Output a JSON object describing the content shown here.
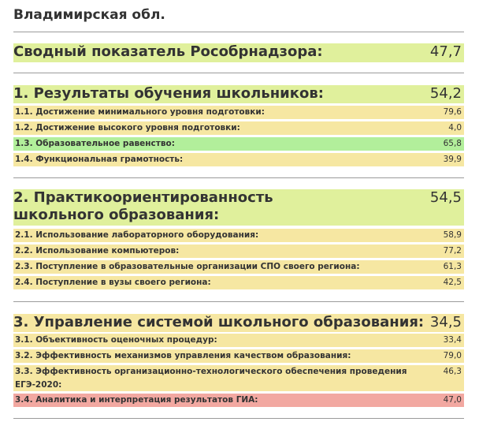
{
  "region": "Владимирская обл.",
  "colors": {
    "lime": "#e0f09c",
    "yellow": "#f6e7a2",
    "green": "#b2ef9b",
    "red": "#f2a8a1"
  },
  "summary": {
    "label": "Сводный показатель Рособрнадзора:",
    "value": "47,7",
    "color": "lime"
  },
  "sections": [
    {
      "label": "1. Результаты обучения школьников:",
      "value": "54,2",
      "color": "lime",
      "items": [
        {
          "label": "1.1. Достижение минимального уровня подготовки:",
          "value": "79,6",
          "color": "yellow"
        },
        {
          "label": "1.2. Достижение высокого уровня подготовки:",
          "value": "4,0",
          "color": "yellow"
        },
        {
          "label": "1.3. Образовательное равенство:",
          "value": "65,8",
          "color": "green"
        },
        {
          "label": "1.4. Функциональная грамотность:",
          "value": "39,9",
          "color": "yellow"
        }
      ]
    },
    {
      "label": "2. Практикоориентированность школьного образования:",
      "value": "54,5",
      "color": "lime",
      "items": [
        {
          "label": "2.1. Использование лабораторного оборудования:",
          "value": "58,9",
          "color": "yellow"
        },
        {
          "label": "2.2. Использование компьютеров:",
          "value": "77,2",
          "color": "yellow"
        },
        {
          "label": "2.3. Поступление в образовательные организации СПО своего региона:",
          "value": "61,3",
          "color": "yellow"
        },
        {
          "label": "2.4. Поступление в вузы своего региона:",
          "value": "42,5",
          "color": "yellow"
        }
      ]
    },
    {
      "label": "3. Управление системой школьного образования:",
      "value": "34,5",
      "color": "yellow",
      "items": [
        {
          "label": "3.1. Объективность оценочных процедур:",
          "value": "33,4",
          "color": "yellow"
        },
        {
          "label": "3.2. Эффективность механизмов управления качеством образования:",
          "value": "79,0",
          "color": "yellow"
        },
        {
          "label": "3.3. Эффективность организационно-технологического обеспечения проведения ЕГЭ-2020:",
          "value": "46,3",
          "color": "yellow"
        },
        {
          "label": "3.4. Аналитика и интерпретация результатов ГИА:",
          "value": "47,0",
          "color": "red"
        }
      ]
    }
  ]
}
